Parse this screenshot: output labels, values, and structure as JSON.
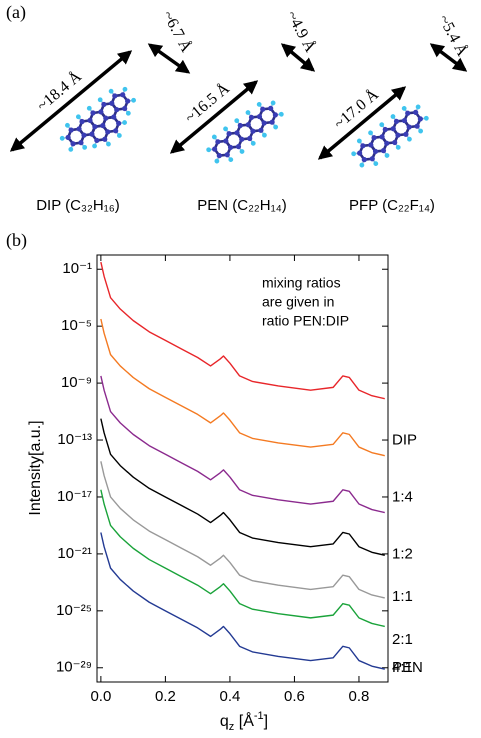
{
  "panel_a": {
    "label": "(a)",
    "molecules": [
      {
        "length": "~18.4 Å",
        "width": "~6.7 Å",
        "name": "DIP (C₃₂H₁₆)"
      },
      {
        "length": "~16.5 Å",
        "width": "~4.9 Å",
        "name": "PEN (C₂₂H₁₄)"
      },
      {
        "length": "~17.0 Å",
        "width": "~5.4 Å",
        "name": "PFP (C₂₂F₁₄)"
      }
    ]
  },
  "chart_data": {
    "type": "line",
    "panel_label": "(b)",
    "y_label": "Intensity[a.u.]",
    "x_label": [
      "q",
      "z",
      " [Å",
      "-1",
      "]"
    ],
    "annotation": [
      "mixing ratios",
      "are given in",
      "ratio PEN:DIP"
    ],
    "log_scale": true,
    "xlim": [
      -0.012,
      0.89
    ],
    "ylim": [
      1e-30,
      1
    ],
    "xticks": [
      {
        "value": 0,
        "label": "0.0"
      },
      0.2,
      0.4,
      0.6,
      0.8
    ],
    "yticks": [
      {
        "value": 0.1,
        "label": "10⁻¹"
      },
      {
        "value": 1e-05,
        "label": "10⁻⁵"
      },
      {
        "value": 1e-09,
        "label": "10⁻⁹"
      },
      {
        "value": 1e-13,
        "label": "10⁻¹³"
      },
      {
        "value": 1e-17,
        "label": "10⁻¹⁷"
      },
      {
        "value": 1e-21,
        "label": "10⁻²¹"
      },
      {
        "value": 1e-25,
        "label": "10⁻²⁵"
      },
      {
        "value": 1e-29,
        "label": "10⁻²⁹"
      }
    ],
    "x": [
      0.0,
      0.01,
      0.03,
      0.06,
      0.1,
      0.15,
      0.2,
      0.25,
      0.3,
      0.34,
      0.37,
      0.38,
      0.4,
      0.43,
      0.47,
      0.55,
      0.65,
      0.72,
      0.75,
      0.77,
      0.8,
      0.84,
      0.88
    ],
    "series": [
      {
        "name": "DIP",
        "color": "#e8262a",
        "values": [
          0.32,
          0.032,
          0.001,
          0.00016,
          2.5e-05,
          4e-06,
          1e-06,
          2.5e-07,
          6.3e-08,
          1.6e-08,
          5e-08,
          8e-08,
          2.5e-08,
          3.2e-09,
          1.3e-09,
          6.3e-10,
          3.2e-10,
          5e-10,
          3.2e-09,
          2.5e-09,
          3.2e-10,
          1.3e-10,
          8e-11
        ]
      },
      {
        "name": "1:4",
        "color": "#f47a22",
        "values": [
          3.2e-05,
          3.2e-06,
          1e-07,
          1.6e-08,
          2.5e-09,
          4e-10,
          1e-10,
          2.5e-11,
          6.3e-12,
          1.6e-12,
          5e-12,
          8e-12,
          2.5e-12,
          3.2e-13,
          1.3e-13,
          6.3e-14,
          3.2e-14,
          5e-14,
          3.2e-13,
          2.5e-13,
          3.2e-14,
          1.3e-14,
          8e-15
        ]
      },
      {
        "name": "1:2",
        "color": "#8b2a8e",
        "values": [
          3.2e-09,
          3.2e-10,
          1e-11,
          1.6e-12,
          2.5e-13,
          4e-14,
          1e-14,
          2.5e-15,
          6.3e-16,
          1.6e-16,
          5e-16,
          8e-16,
          2.5e-16,
          3.2e-17,
          1.3e-17,
          6.3e-18,
          3.2e-18,
          5e-18,
          3.2e-17,
          2.5e-17,
          3.2e-18,
          1.3e-18,
          8e-19
        ]
      },
      {
        "name": "1:1",
        "color": "#000000",
        "values": [
          3.2e-12,
          3.2e-13,
          1e-14,
          1.6e-15,
          2.5e-16,
          4e-17,
          1e-17,
          2.5e-18,
          6.3e-19,
          1.6e-19,
          5e-19,
          8e-19,
          2.5e-19,
          3.2e-20,
          1.3e-20,
          6.3e-21,
          3.2e-21,
          5e-21,
          3.2e-20,
          2.5e-20,
          3.2e-21,
          1.3e-21,
          8e-22
        ]
      },
      {
        "name": "2:1",
        "color": "#999999",
        "values": [
          3.2e-15,
          3.2e-16,
          1e-17,
          1.6e-18,
          2.5e-19,
          4e-20,
          1e-20,
          2.5e-21,
          6.3e-22,
          1.6e-22,
          5e-22,
          8e-22,
          2.5e-22,
          3.2e-23,
          1.3e-23,
          6.3e-24,
          3.2e-24,
          5e-24,
          3.2e-23,
          2.5e-23,
          3.2e-24,
          1.3e-24,
          8e-25
        ]
      },
      {
        "name": "4:1",
        "color": "#1aa33a",
        "values": [
          3.2e-17,
          3.2e-18,
          1e-19,
          1.6e-20,
          2.5e-21,
          4e-22,
          1e-22,
          2.5e-23,
          6.3e-24,
          1.6e-24,
          5e-24,
          8e-24,
          2.5e-24,
          3.2e-25,
          1.3e-25,
          6.3e-26,
          3.2e-26,
          5e-26,
          3.2e-25,
          2.5e-25,
          3.2e-26,
          1.3e-26,
          8e-27
        ]
      },
      {
        "name": "PEN",
        "color": "#233a93",
        "values": [
          3.2e-20,
          3.2e-21,
          1e-22,
          1.6e-23,
          2.5e-24,
          4e-25,
          1e-25,
          2.5e-26,
          6.3e-27,
          1.6e-27,
          5e-27,
          8e-27,
          2.5e-27,
          3.2e-28,
          1.3e-28,
          6.3e-29,
          3.2e-29,
          5e-29,
          3.2e-28,
          2.5e-28,
          3.2e-29,
          1.3e-29,
          8e-30
        ]
      }
    ]
  }
}
